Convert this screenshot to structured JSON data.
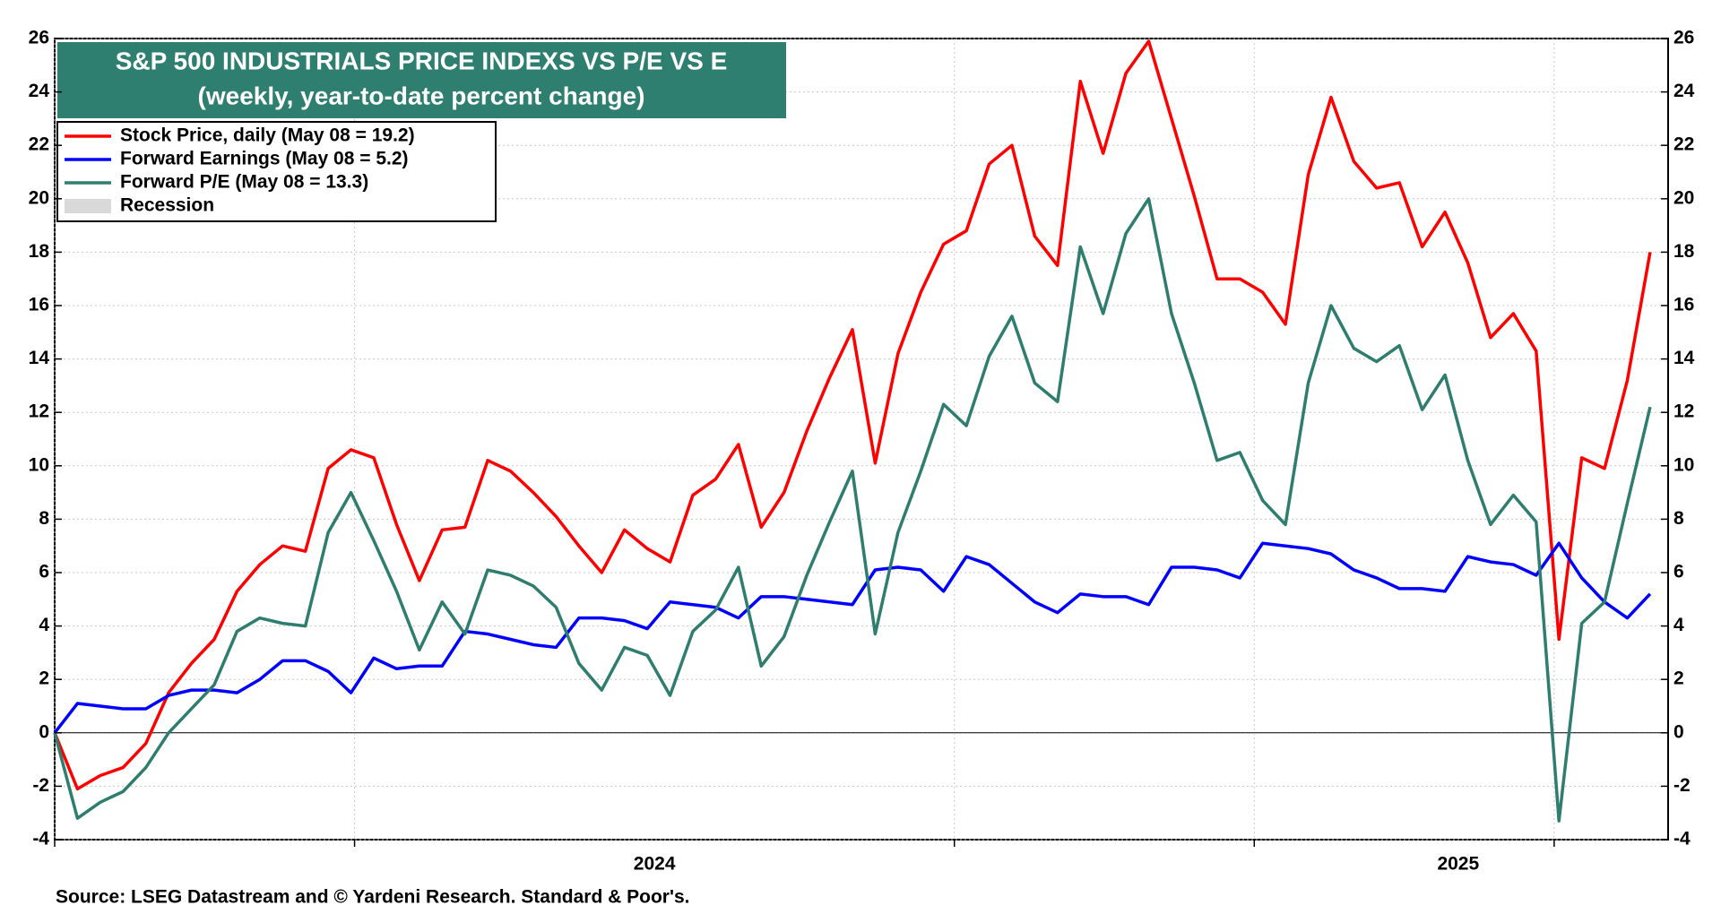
{
  "chart_data": {
    "type": "line",
    "title": "S&P 500 INDUSTRIALS PRICE INDEXS VS P/E VS E",
    "subtitle": "(weekly, year-to-date percent change)",
    "source": "Source: LSEG Datastream and © Yardeni Research. Standard & Poor's.",
    "recession_label": "Recession",
    "x": [
      2024.0,
      2024.019,
      2024.038,
      2024.057,
      2024.076,
      2024.095,
      2024.114,
      2024.133,
      2024.152,
      2024.171,
      2024.19,
      2024.209,
      2024.228,
      2024.247,
      2024.266,
      2024.285,
      2024.304,
      2024.323,
      2024.342,
      2024.361,
      2024.38,
      2024.399,
      2024.418,
      2024.437,
      2024.456,
      2024.475,
      2024.494,
      2024.513,
      2024.532,
      2024.551,
      2024.57,
      2024.589,
      2024.608,
      2024.627,
      2024.646,
      2024.665,
      2024.684,
      2024.703,
      2024.722,
      2024.741,
      2024.76,
      2024.779,
      2024.798,
      2024.817,
      2024.836,
      2024.855,
      2024.874,
      2024.893,
      2024.912,
      2024.931,
      2024.95,
      2024.969,
      2024.988,
      2025.007,
      2025.026,
      2025.045,
      2025.064,
      2025.083,
      2025.102,
      2025.121,
      2025.14,
      2025.159,
      2025.178,
      2025.197,
      2025.216,
      2025.235,
      2025.254,
      2025.273,
      2025.292,
      2025.311,
      2025.33
    ],
    "series": [
      {
        "name": "Stock Price, daily (May 08 = 19.2)",
        "color": "#ff0000",
        "values": [
          0,
          -2.1,
          -1.6,
          -1.3,
          -0.4,
          1.5,
          2.6,
          3.5,
          5.3,
          6.3,
          7.0,
          6.8,
          9.9,
          10.6,
          10.3,
          7.8,
          5.7,
          7.6,
          7.7,
          10.2,
          9.8,
          9.0,
          8.1,
          7.0,
          6.0,
          7.6,
          6.9,
          6.4,
          8.9,
          9.5,
          10.8,
          7.7,
          9.0,
          11.3,
          13.3,
          15.1,
          10.1,
          14.2,
          16.5,
          18.3,
          18.8,
          21.3,
          22.0,
          18.6,
          17.5,
          24.4,
          21.7,
          24.7,
          25.9,
          23.0,
          20.1,
          17.0,
          17.0,
          16.5,
          15.3,
          20.9,
          23.8,
          21.4,
          20.4,
          20.6,
          18.2,
          19.5,
          17.6,
          14.8,
          15.7,
          14.3,
          3.5,
          10.3,
          9.9,
          13.2,
          18.0
        ]
      },
      {
        "name": "Forward Earnings (May 08 = 5.2)",
        "color": "#0000ff",
        "values": [
          0,
          1.1,
          1.0,
          0.9,
          0.9,
          1.4,
          1.6,
          1.6,
          1.5,
          2.0,
          2.7,
          2.7,
          2.3,
          1.5,
          2.8,
          2.4,
          2.5,
          2.5,
          3.8,
          3.7,
          3.5,
          3.3,
          3.2,
          4.3,
          4.3,
          4.2,
          3.9,
          4.9,
          4.8,
          4.7,
          4.3,
          5.1,
          5.1,
          5.0,
          4.9,
          4.8,
          6.1,
          6.2,
          6.1,
          5.3,
          6.6,
          6.3,
          5.6,
          4.9,
          4.5,
          5.2,
          5.1,
          5.1,
          4.8,
          6.2,
          6.2,
          6.1,
          5.8,
          7.1,
          7.0,
          6.9,
          6.7,
          6.1,
          5.8,
          5.4,
          5.4,
          5.3,
          6.6,
          6.4,
          6.3,
          5.9,
          7.1,
          5.8,
          4.9,
          4.3,
          5.2
        ]
      },
      {
        "name": "Forward P/E (May 08 = 13.3)",
        "color": "#2e7d6e",
        "values": [
          0,
          -3.2,
          -2.6,
          -2.2,
          -1.3,
          0.0,
          0.9,
          1.8,
          3.8,
          4.3,
          4.1,
          4.0,
          7.5,
          9.0,
          7.2,
          5.3,
          3.1,
          4.9,
          3.7,
          6.1,
          5.9,
          5.5,
          4.7,
          2.6,
          1.6,
          3.2,
          2.9,
          1.4,
          3.8,
          4.6,
          6.2,
          2.5,
          3.6,
          5.9,
          7.9,
          9.8,
          3.7,
          7.5,
          9.8,
          12.3,
          11.5,
          14.1,
          15.6,
          13.1,
          12.4,
          18.2,
          15.7,
          18.7,
          20.0,
          15.7,
          13.1,
          10.2,
          10.5,
          8.7,
          7.8,
          13.1,
          16.0,
          14.4,
          13.9,
          14.5,
          12.1,
          13.4,
          10.2,
          7.8,
          8.9,
          7.9,
          -3.3,
          4.1,
          4.9,
          8.6,
          12.2
        ]
      }
    ],
    "xlim": [
      2024,
      2025.345
    ],
    "xticks": [
      2024,
      2024.25,
      2024.75,
      2025,
      2025.25
    ],
    "x_labels": [
      {
        "value": 2024.5,
        "label": "2024"
      },
      {
        "value": 2025.17,
        "label": "2025"
      }
    ],
    "ylim": [
      -4,
      26
    ],
    "yticks": [
      -4,
      -2,
      0,
      2,
      4,
      6,
      8,
      10,
      12,
      14,
      16,
      18,
      20,
      22,
      24,
      26
    ],
    "grid": true,
    "title_color": "#2f7f70",
    "recession_color": "#d9d9d9"
  }
}
